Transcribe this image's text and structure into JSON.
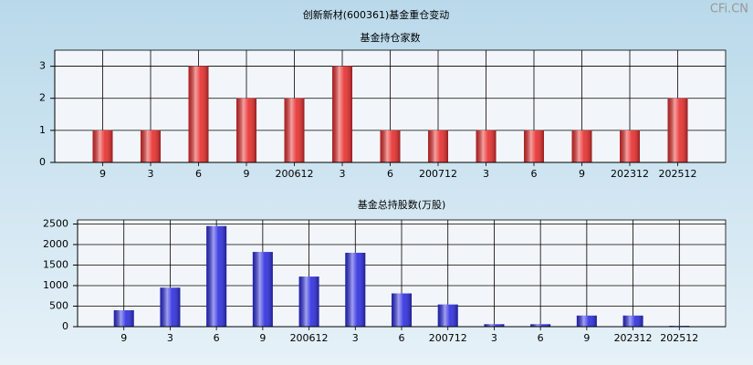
{
  "title": "创新新材(600361)基金重仓变动",
  "watermark": "CFi.CN",
  "chart_data": [
    {
      "type": "bar",
      "title": "基金持仓家数",
      "categories": [
        "9",
        "3",
        "6",
        "9",
        "200612",
        "3",
        "6",
        "200712",
        "3",
        "6",
        "9",
        "202312",
        "202512"
      ],
      "values": [
        1,
        1,
        3,
        2,
        2,
        3,
        1,
        1,
        1,
        1,
        1,
        1,
        2
      ],
      "color": "#e82c2c",
      "ylim": [
        0,
        3.5
      ],
      "yticks": [
        0,
        1,
        2,
        3
      ],
      "grid": true
    },
    {
      "type": "bar",
      "title": "基金总持股数(万股)",
      "categories": [
        "9",
        "3",
        "6",
        "9",
        "200612",
        "3",
        "6",
        "200712",
        "3",
        "6",
        "9",
        "202312",
        "202512"
      ],
      "values": [
        400,
        950,
        2450,
        1820,
        1220,
        1800,
        810,
        540,
        60,
        60,
        270,
        270,
        20
      ],
      "color": "#2c2ce0",
      "ylim": [
        0,
        2600
      ],
      "yticks": [
        0,
        500,
        1000,
        1500,
        2000,
        2500
      ],
      "grid": true
    }
  ]
}
